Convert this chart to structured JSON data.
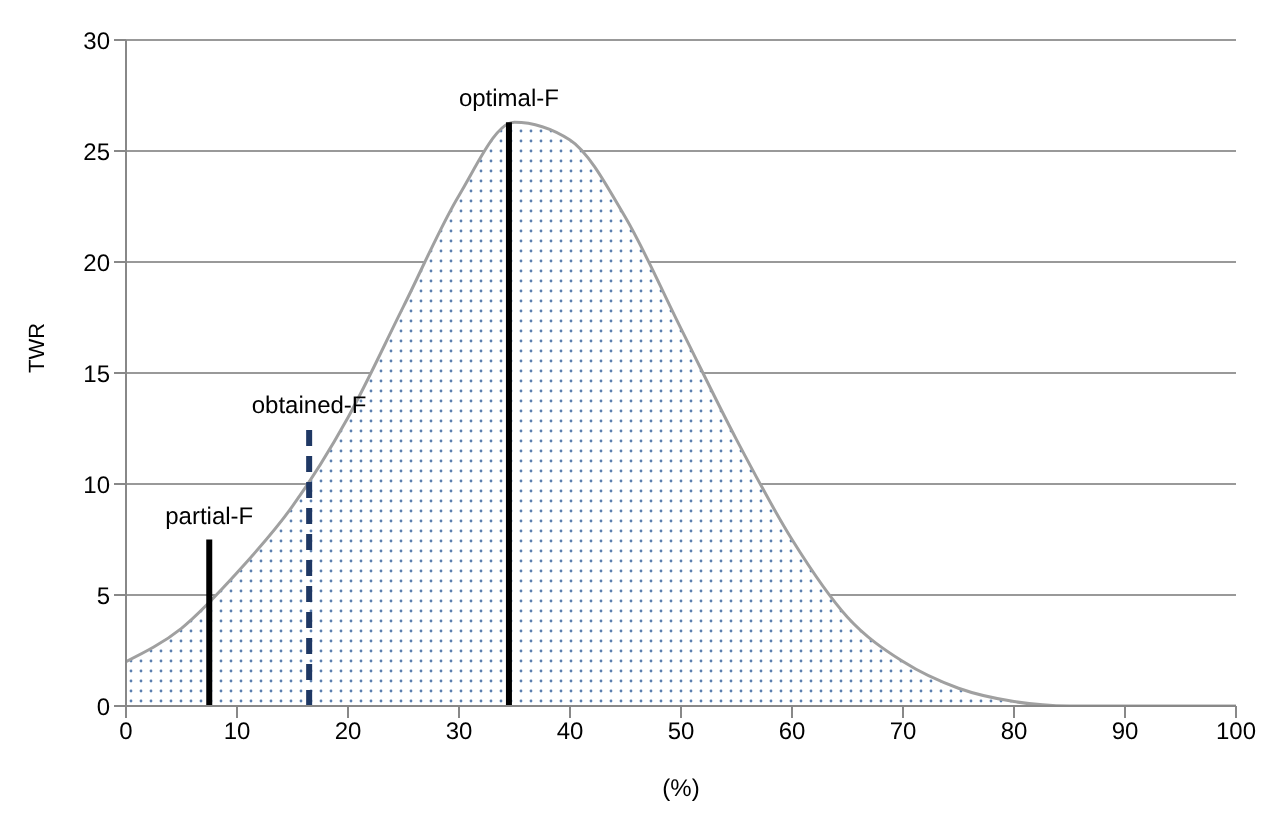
{
  "chart_data": {
    "type": "area",
    "xlabel": "(%)",
    "ylabel": "TWR",
    "xlim": [
      0,
      100
    ],
    "xticks": [
      0,
      10,
      20,
      30,
      40,
      50,
      60,
      70,
      80,
      90,
      100
    ],
    "ylim": [
      0,
      30
    ],
    "yticks": [
      0,
      5,
      10,
      15,
      20,
      25,
      30
    ],
    "grid": "y",
    "legend": false,
    "series": [
      {
        "color": "#a0a0a0",
        "x": [
          0,
          5,
          10,
          15,
          20,
          25,
          30,
          35,
          40,
          45,
          50,
          55,
          60,
          65,
          70,
          75,
          80,
          85,
          90,
          95,
          100
        ],
        "values": [
          2,
          3.5,
          6,
          9,
          13,
          18,
          23,
          26.3,
          25.5,
          22,
          17,
          12,
          7.5,
          4,
          2,
          0.8,
          0.2,
          0,
          0,
          0,
          0
        ]
      },
      {
        "type": "line",
        "name": "partial-F",
        "color": "#000000",
        "line_style": "solid",
        "x": [
          7.5,
          7.5
        ],
        "values": [
          0,
          7.5
        ]
      },
      {
        "type": "line",
        "name": "obtained-F",
        "color": "#1f3864",
        "line_style": "dashed",
        "x": [
          16.5,
          16.5
        ],
        "values": [
          0,
          12.5
        ]
      },
      {
        "type": "line",
        "name": "optimal-F",
        "color": "#000000",
        "line_style": "solid",
        "x": [
          34.5,
          34.5
        ],
        "values": [
          0,
          26.3
        ]
      }
    ]
  }
}
